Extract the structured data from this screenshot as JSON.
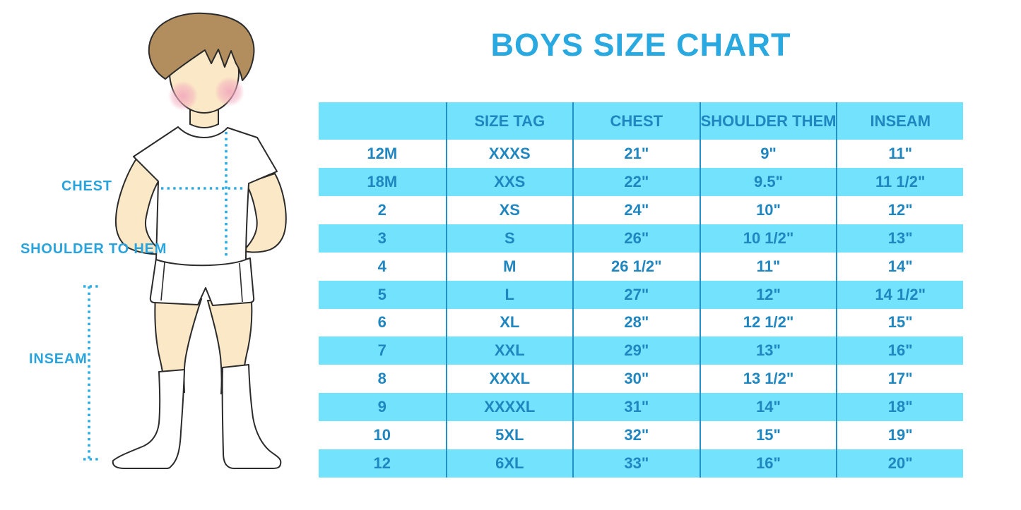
{
  "title": "BOYS SIZE CHART",
  "figure_labels": {
    "chest": "CHEST",
    "shoulder_to_hem": "SHOULDER TO HEM",
    "inseam": "INSEAM"
  },
  "colors": {
    "title_blue": "#29A9E0",
    "table_text_blue": "#1F86C0",
    "row_band_cyan": "#73E2FC",
    "column_line_blue": "#2191C9",
    "measure_label_blue": "#29A3DC",
    "dotted_line_cyan": "#2BACE4",
    "hair_brown": "#B28E5F",
    "skin_tone": "#FBE8C6",
    "blush_pink": "#F2A8BD",
    "outline_dark": "#2b2b2b"
  },
  "chart_data": {
    "type": "table",
    "title": "BOYS SIZE CHART",
    "columns": [
      "",
      "SIZE TAG",
      "CHEST",
      "SHOULDER THEM",
      "INSEAM"
    ],
    "rows": [
      [
        "12M",
        "XXXS",
        "21\"",
        "9\"",
        "11\""
      ],
      [
        "18M",
        "XXS",
        "22\"",
        "9.5\"",
        "11 1/2\""
      ],
      [
        "2",
        "XS",
        "24\"",
        "10\"",
        "12\""
      ],
      [
        "3",
        "S",
        "26\"",
        "10 1/2\"",
        "13\""
      ],
      [
        "4",
        "M",
        "26 1/2\"",
        "11\"",
        "14\""
      ],
      [
        "5",
        "L",
        "27\"",
        "12\"",
        "14 1/2\""
      ],
      [
        "6",
        "XL",
        "28\"",
        "12 1/2\"",
        "15\""
      ],
      [
        "7",
        "XXL",
        "29\"",
        "13\"",
        "16\""
      ],
      [
        "8",
        "XXXL",
        "30\"",
        "13 1/2\"",
        "17\""
      ],
      [
        "9",
        "XXXXL",
        "31\"",
        "14\"",
        "18\""
      ],
      [
        "10",
        "5XL",
        "32\"",
        "15\"",
        "19\""
      ],
      [
        "12",
        "6XL",
        "33\"",
        "16\"",
        "20\""
      ]
    ],
    "striping": "header and every second data row filled cyan, others white",
    "grid": "vertical column separators only"
  }
}
